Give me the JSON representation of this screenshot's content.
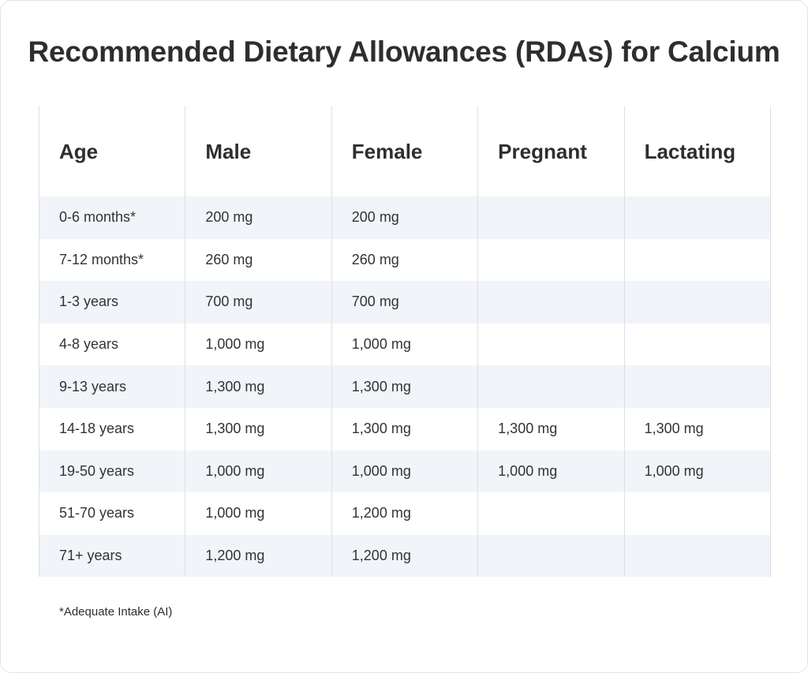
{
  "title": "Recommended Dietary Allowances (RDAs) for Calcium",
  "table": {
    "headers": [
      "Age",
      "Male",
      "Female",
      "Pregnant",
      "Lactating"
    ],
    "rows": [
      [
        "0-6 months*",
        "200 mg",
        "200 mg",
        "",
        ""
      ],
      [
        "7-12 months*",
        "260 mg",
        "260 mg",
        "",
        ""
      ],
      [
        "1-3 years",
        "700 mg",
        "700 mg",
        "",
        ""
      ],
      [
        "4-8 years",
        "1,000 mg",
        "1,000 mg",
        "",
        ""
      ],
      [
        "9-13 years",
        "1,300 mg",
        "1,300 mg",
        "",
        ""
      ],
      [
        "14-18 years",
        "1,300 mg",
        "1,300 mg",
        "1,300 mg",
        "1,300 mg"
      ],
      [
        "19-50 years",
        "1,000 mg",
        "1,000 mg",
        "1,000 mg",
        "1,000 mg"
      ],
      [
        "51-70 years",
        "1,000 mg",
        "1,200 mg",
        "",
        ""
      ],
      [
        "71+ years",
        "1,200 mg",
        "1,200 mg",
        "",
        ""
      ]
    ]
  },
  "footnote": "*Adequate Intake (AI)",
  "colors": {
    "stripe": "#f1f4f8",
    "border": "#dcdfe4",
    "text": "#2e2e2e"
  }
}
